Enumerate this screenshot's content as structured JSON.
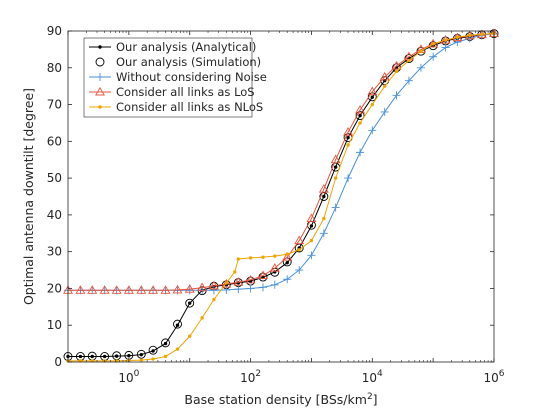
{
  "chart_data": {
    "type": "line",
    "title": "",
    "xlabel": "Base station density [BSs/km",
    "xlabel_sup": "2",
    "xlabel_tail": "]",
    "ylabel": "Optimal antenna downtilt [degree]",
    "xscale": "log",
    "xlim": [
      0.1,
      1000000
    ],
    "ylim": [
      0,
      90
    ],
    "grid": false,
    "legend_position": "top-left",
    "x_tick_labels": [
      {
        "base": "10",
        "exp": "0",
        "value": 1
      },
      {
        "base": "10",
        "exp": "2",
        "value": 100
      },
      {
        "base": "10",
        "exp": "4",
        "value": 10000
      },
      {
        "base": "10",
        "exp": "6",
        "value": 1000000
      }
    ],
    "y_tick_labels": [
      "0",
      "10",
      "20",
      "30",
      "40",
      "50",
      "60",
      "70",
      "80",
      "90"
    ],
    "y_ticks": [
      0,
      10,
      20,
      30,
      40,
      50,
      60,
      70,
      80,
      90
    ],
    "series": [
      {
        "name": "Our analysis (Analytical)",
        "color": "#000000",
        "marker": "dot",
        "x": [
          0.1,
          0.16,
          0.25,
          0.4,
          0.63,
          1,
          1.6,
          2.5,
          4,
          6.3,
          10,
          16,
          25,
          40,
          63,
          100,
          160,
          250,
          400,
          630,
          1000,
          1600,
          2500,
          4000,
          6300,
          10000,
          16000,
          25000,
          40000,
          63000,
          100000,
          160000,
          250000,
          400000,
          630000,
          1000000
        ],
        "y": [
          1.5,
          1.5,
          1.5,
          1.5,
          1.6,
          1.7,
          2,
          3,
          5,
          10,
          16,
          19.5,
          20.5,
          21,
          21.5,
          22,
          23,
          24.5,
          27,
          31,
          37,
          45,
          53,
          61,
          67,
          72,
          76.5,
          80,
          82.5,
          84.5,
          86,
          87.3,
          88,
          88.5,
          89,
          89.3
        ]
      },
      {
        "name": "Our analysis (Simulation)",
        "color": "#000000",
        "marker": "circle",
        "x": [
          0.1,
          0.16,
          0.25,
          0.4,
          0.63,
          1,
          1.6,
          2.5,
          4,
          6.3,
          10,
          16,
          25,
          40,
          63,
          100,
          160,
          250,
          400,
          630,
          1000,
          1600,
          2500,
          4000,
          6300,
          10000,
          16000,
          25000,
          40000,
          63000,
          100000,
          160000,
          250000,
          400000,
          630000,
          1000000
        ],
        "y": [
          1.5,
          1.5,
          1.6,
          1.5,
          1.7,
          1.8,
          2.1,
          3.2,
          5.2,
          10.3,
          16,
          19.4,
          20.6,
          21,
          21.6,
          22,
          23.1,
          24.4,
          27.2,
          31,
          37.2,
          45,
          53,
          61,
          67,
          72.1,
          76.5,
          80,
          82.5,
          84.5,
          86,
          87.3,
          88,
          88.5,
          89,
          89.3
        ]
      },
      {
        "name": "Without considering Noise",
        "color": "#4a90d9",
        "marker": "plus",
        "x": [
          0.1,
          0.16,
          0.25,
          0.4,
          0.63,
          1,
          1.6,
          2.5,
          4,
          6.3,
          10,
          16,
          25,
          40,
          63,
          100,
          160,
          250,
          400,
          630,
          1000,
          1600,
          2500,
          4000,
          6300,
          10000,
          16000,
          25000,
          40000,
          63000,
          100000,
          160000,
          250000,
          400000,
          630000,
          1000000
        ],
        "y": [
          19.5,
          19.5,
          19.5,
          19.5,
          19.5,
          19.5,
          19.5,
          19.5,
          19.5,
          19.5,
          19.5,
          19.5,
          19.5,
          19.6,
          19.8,
          20,
          20.3,
          21,
          22.5,
          25,
          29,
          35,
          42,
          50,
          57,
          63,
          68,
          72.5,
          76.5,
          80,
          83,
          85.5,
          87,
          88,
          88.8,
          89.3
        ]
      },
      {
        "name": "Consider all links as LoS",
        "color": "#e8553d",
        "marker": "triangle",
        "x": [
          0.1,
          0.16,
          0.25,
          0.4,
          0.63,
          1,
          1.6,
          2.5,
          4,
          6.3,
          10,
          16,
          25,
          40,
          63,
          100,
          160,
          250,
          400,
          630,
          1000,
          1600,
          2500,
          4000,
          6300,
          10000,
          16000,
          25000,
          40000,
          63000,
          100000,
          160000,
          250000,
          400000,
          630000,
          1000000
        ],
        "y": [
          19.5,
          19.5,
          19.5,
          19.5,
          19.5,
          19.5,
          19.5,
          19.5,
          19.5,
          19.6,
          19.8,
          20.2,
          20.7,
          21.2,
          21.7,
          22.3,
          23.5,
          25.5,
          28.5,
          33,
          39,
          47,
          55,
          62.5,
          68.5,
          73.5,
          77.5,
          80.5,
          83,
          85,
          86.5,
          87.5,
          88.2,
          88.7,
          89,
          89.3
        ]
      },
      {
        "name": "Consider all links as NLoS",
        "color": "#f0a500",
        "marker": "dot",
        "x": [
          0.1,
          0.16,
          0.25,
          0.4,
          0.63,
          1,
          1.6,
          2.5,
          4,
          6.3,
          10,
          16,
          25,
          40,
          55,
          63,
          100,
          160,
          250,
          400,
          630,
          1000,
          1600,
          2500,
          4000,
          6300,
          10000,
          16000,
          25000,
          40000,
          63000,
          100000,
          160000,
          250000,
          400000,
          630000,
          1000000
        ],
        "y": [
          0.3,
          0.3,
          0.3,
          0.3,
          0.3,
          0.4,
          0.5,
          0.8,
          1.5,
          3.5,
          7,
          12,
          17,
          21.5,
          24.5,
          28,
          28.3,
          28.5,
          28.8,
          29.3,
          30.5,
          33,
          39,
          50,
          59,
          65,
          70,
          75,
          79,
          82,
          84.5,
          86.5,
          87.5,
          88.3,
          88.8,
          89.1,
          89.3
        ]
      }
    ]
  }
}
